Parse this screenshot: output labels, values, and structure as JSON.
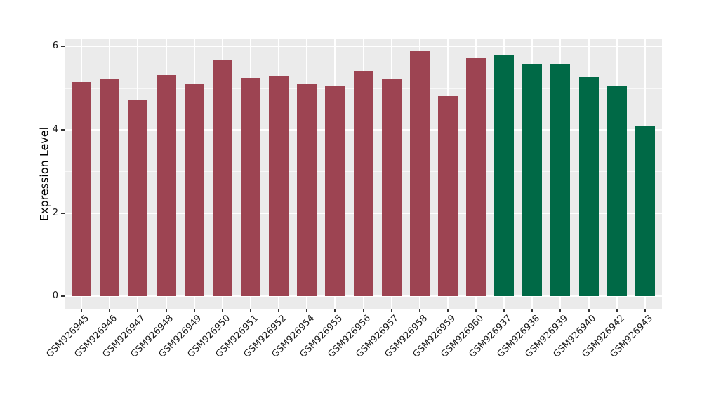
{
  "chart_data": {
    "type": "bar",
    "title": "",
    "xlabel": "",
    "ylabel": "Expression Level",
    "ylim": [
      0,
      6.2
    ],
    "yticks_major": [
      0,
      2,
      4,
      6
    ],
    "yticks_minor": [
      1,
      3,
      5
    ],
    "grid": "white major+minor horizontal lines, white vertical line at each category, grey panel",
    "legend_position": "none",
    "categories": [
      "GSM926945",
      "GSM926946",
      "GSM926947",
      "GSM926948",
      "GSM926949",
      "GSM926950",
      "GSM926951",
      "GSM926952",
      "GSM926954",
      "GSM926955",
      "GSM926956",
      "GSM926957",
      "GSM926958",
      "GSM926959",
      "GSM926960",
      "GSM926937",
      "GSM926938",
      "GSM926939",
      "GSM926940",
      "GSM926942",
      "GSM926943"
    ],
    "values": [
      5.15,
      5.21,
      4.73,
      5.31,
      5.12,
      5.67,
      5.24,
      5.28,
      5.12,
      5.07,
      5.41,
      5.23,
      5.88,
      4.81,
      5.72,
      5.8,
      5.59,
      5.59,
      5.27,
      5.07,
      4.1
    ],
    "bar_group_index": [
      0,
      0,
      0,
      0,
      0,
      0,
      0,
      0,
      0,
      0,
      0,
      0,
      0,
      0,
      0,
      1,
      1,
      1,
      1,
      1,
      1
    ],
    "palette": {
      "group_colors": [
        "#9D4452",
        "#006946"
      ],
      "panel_background": "#EBEBEB",
      "grid_color": "#FFFFFF",
      "tick_color": "#333333",
      "text_color": "#1a1a1a"
    }
  }
}
